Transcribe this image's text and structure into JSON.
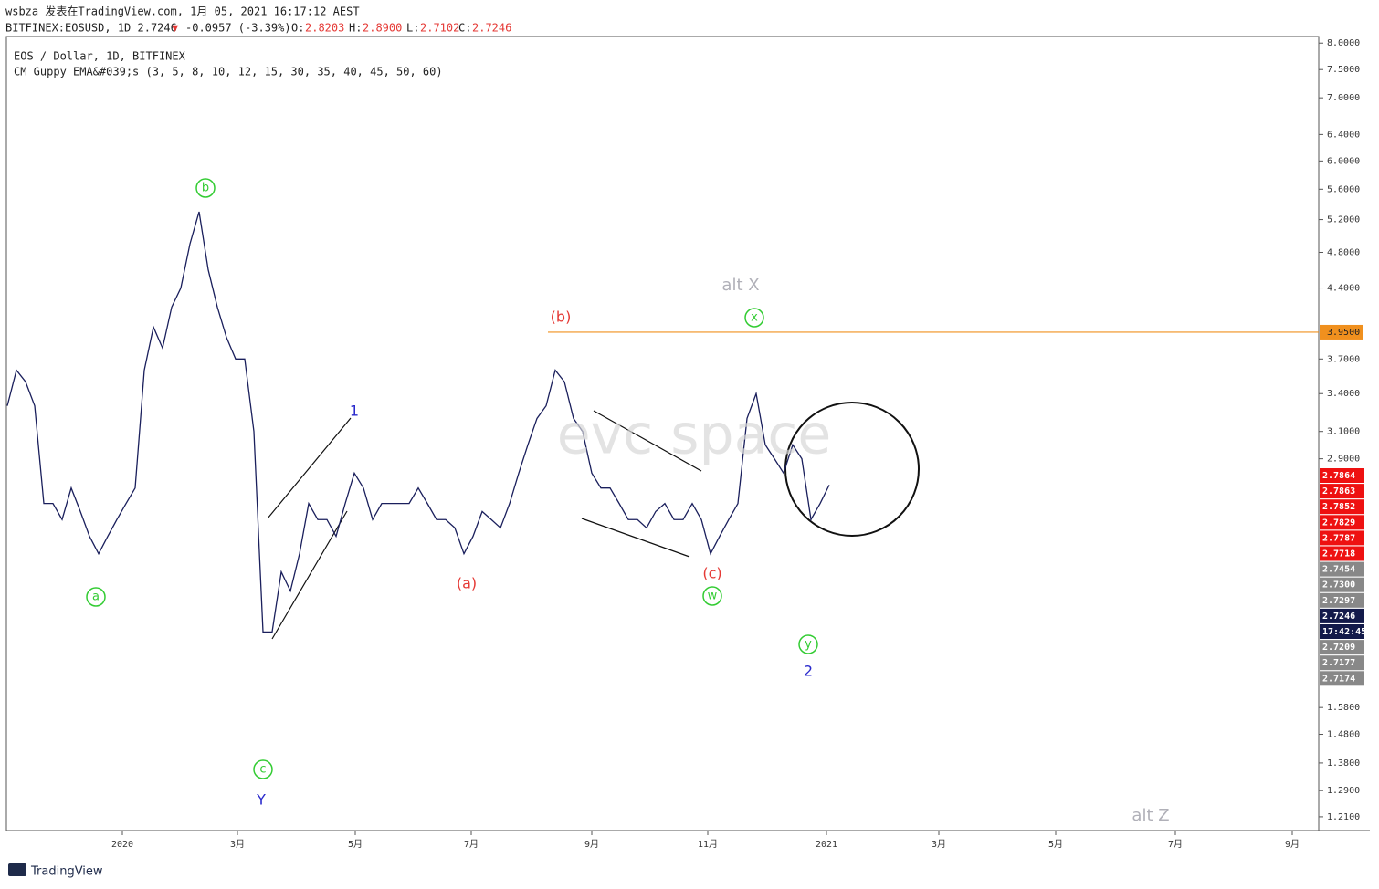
{
  "header": {
    "line1": "wsbza 发表在TradingView.com, 1月 05, 2021 16:17:12 AEST",
    "symbol": "BITFINEX:EOSUSD, 1D 2.7246",
    "arrow": "▼",
    "change": "-0.0957 (-3.39%)",
    "o_label": "O:",
    "o": "2.8203",
    "h_label": "H:",
    "h": "2.8900",
    "l_label": "L:",
    "l": "2.7102",
    "c_label": "C:",
    "c": "2.7246"
  },
  "legend": {
    "series": "EOS / Dollar, 1D, BITFINEX",
    "indicator": "CM_Guppy_EMA&#039;s (3, 5, 8, 10, 12, 15, 30, 35, 40, 45, 50, 60)"
  },
  "footer": {
    "brand": "TradingView"
  },
  "chart_data": {
    "type": "line",
    "log_scale": true,
    "color": "#1a1f5c",
    "values": [
      3.3,
      3.6,
      3.5,
      3.3,
      2.6,
      2.6,
      2.5,
      2.7,
      2.55,
      2.4,
      2.3,
      2.4,
      2.5,
      2.6,
      2.7,
      3.6,
      4.0,
      3.8,
      4.2,
      4.4,
      4.9,
      5.3,
      4.6,
      4.2,
      3.9,
      3.7,
      3.7,
      3.1,
      1.9,
      1.9,
      2.2,
      2.1,
      2.3,
      2.6,
      2.5,
      2.5,
      2.4,
      2.6,
      2.8,
      2.7,
      2.5,
      2.6,
      2.6,
      2.6,
      2.6,
      2.7,
      2.6,
      2.5,
      2.5,
      2.45,
      2.3,
      2.4,
      2.55,
      2.5,
      2.45,
      2.6,
      2.8,
      3.0,
      3.2,
      3.3,
      3.6,
      3.5,
      3.2,
      3.1,
      2.8,
      2.7,
      2.7,
      2.6,
      2.5,
      2.5,
      2.45,
      2.55,
      2.6,
      2.5,
      2.5,
      2.6,
      2.5,
      2.3,
      2.4,
      2.5,
      2.6,
      3.2,
      3.4,
      3.0,
      2.9,
      2.8,
      3.0,
      2.9,
      2.5,
      2.6,
      2.72
    ],
    "ylim": [
      1.17,
      8.13
    ],
    "yticks": [
      {
        "value": 8,
        "label": "8.0000"
      },
      {
        "value": 7.5,
        "label": "7.5000"
      },
      {
        "value": 7,
        "label": "7.0000"
      },
      {
        "value": 6.4,
        "label": "6.4000"
      },
      {
        "value": 6,
        "label": "6.0000"
      },
      {
        "value": 5.6,
        "label": "5.6000"
      },
      {
        "value": 5.2,
        "label": "5.2000"
      },
      {
        "value": 4.8,
        "label": "4.8000"
      },
      {
        "value": 4.4,
        "label": "4.4000"
      },
      {
        "value": 3.7,
        "label": "3.7000"
      },
      {
        "value": 3.4,
        "label": "3.4000"
      },
      {
        "value": 3.1,
        "label": "3.1000"
      },
      {
        "value": 2.9,
        "label": "2.9000"
      },
      {
        "value": 1.58,
        "label": "1.5800"
      },
      {
        "value": 1.48,
        "label": "1.4800"
      },
      {
        "value": 1.38,
        "label": "1.3800"
      },
      {
        "value": 1.29,
        "label": "1.2900"
      },
      {
        "value": 1.21,
        "label": "1.2100"
      }
    ],
    "level": {
      "value": 3.95,
      "label": "3.9500",
      "color": "#f0901e"
    },
    "price_labels": [
      {
        "value": 2.7864,
        "label": "2.7864",
        "color": "#ee1111"
      },
      {
        "value": 2.7863,
        "label": "2.7863",
        "color": "#ee1111"
      },
      {
        "value": 2.7852,
        "label": "2.7852",
        "color": "#ee1111"
      },
      {
        "value": 2.7829,
        "label": "2.7829",
        "color": "#ee1111"
      },
      {
        "value": 2.7787,
        "label": "2.7787",
        "color": "#ee1111"
      },
      {
        "value": 2.7718,
        "label": "2.7718",
        "color": "#ee1111"
      },
      {
        "value": 2.7454,
        "label": "2.7454",
        "color": "#888888"
      },
      {
        "value": 2.73,
        "label": "2.7300",
        "color": "#888888"
      },
      {
        "value": 2.7297,
        "label": "2.7297",
        "color": "#888888"
      },
      {
        "value": 2.7246,
        "label": "2.7246",
        "color": "#131a4a"
      },
      {
        "label": "17:42:45",
        "color": "#131a4a"
      },
      {
        "value": 2.7209,
        "label": "2.7209",
        "color": "#888888"
      },
      {
        "value": 2.7177,
        "label": "2.7177",
        "color": "#888888"
      },
      {
        "value": 2.7174,
        "label": "2.7174",
        "color": "#888888"
      }
    ],
    "xtick_labels": [
      "2020",
      "3月",
      "5月",
      "7月",
      "9月",
      "11月",
      "2021",
      "3月",
      "5月",
      "7月",
      "9月"
    ],
    "annotations": [
      {
        "text": "b",
        "color": "#33cc33",
        "circled": true
      },
      {
        "text": "a",
        "color": "#33cc33",
        "circled": true
      },
      {
        "text": "c",
        "color": "#33cc33",
        "circled": true
      },
      {
        "text": "Y",
        "color": "#2a2acc",
        "circled": false
      },
      {
        "text": "1",
        "color": "#2a2acc",
        "circled": false
      },
      {
        "text": "(b)",
        "color": "#e53935",
        "circled": false
      },
      {
        "text": "(a)",
        "color": "#e53935",
        "circled": false
      },
      {
        "text": "(c)",
        "color": "#e53935",
        "circled": false
      },
      {
        "text": "w",
        "color": "#33cc33",
        "circled": true
      },
      {
        "text": "x",
        "color": "#33cc33",
        "circled": true
      },
      {
        "text": "y",
        "color": "#33cc33",
        "circled": true
      },
      {
        "text": "2",
        "color": "#2a2acc",
        "circled": false
      },
      {
        "text": "alt X",
        "color": "#b0b0b8",
        "circled": false
      },
      {
        "text": "alt Z",
        "color": "#b0b0b8",
        "circled": false
      },
      {
        "text": "evc space",
        "color": "#d8d8d8",
        "circled": false
      }
    ]
  }
}
